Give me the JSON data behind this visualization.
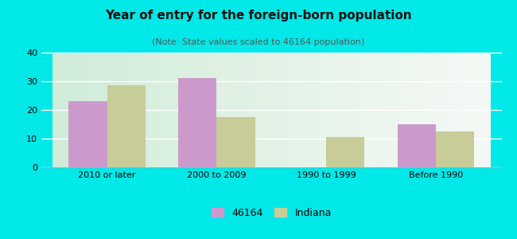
{
  "title": "Year of entry for the foreign-born population",
  "subtitle": "(Note: State values scaled to 46164 population)",
  "categories": [
    "2010 or later",
    "2000 to 2009",
    "1990 to 1999",
    "Before 1990"
  ],
  "values_46164": [
    23.0,
    31.0,
    0.0,
    15.0
  ],
  "values_indiana": [
    28.5,
    17.5,
    10.5,
    12.5
  ],
  "color_46164": "#cc99cc",
  "color_indiana": "#c8cc99",
  "ylim": [
    0,
    40
  ],
  "yticks": [
    0,
    10,
    20,
    30,
    40
  ],
  "bar_width": 0.35,
  "background_outer": "#00e8e8",
  "legend_label_1": "46164",
  "legend_label_2": "Indiana",
  "title_fontsize": 11,
  "subtitle_fontsize": 8,
  "tick_fontsize": 8,
  "legend_fontsize": 9
}
